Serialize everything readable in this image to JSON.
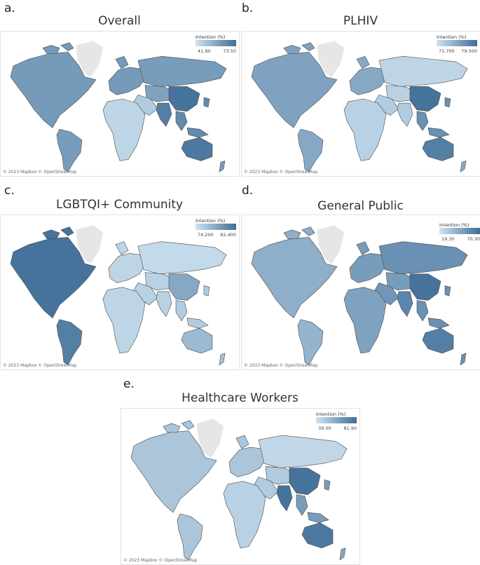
{
  "attribution": "© 2023 Mapbox © OpenStreetMap",
  "panels": [
    {
      "letter": "a.",
      "title": "Overall",
      "legend": {
        "title": "Intention (%)",
        "min": "41.90",
        "max": "73.50"
      },
      "shading": {
        "na": 0.62,
        "sa": 0.6,
        "eu": 0.62,
        "africa": 0.12,
        "me": 0.2,
        "russia": 0.6,
        "centralasia": 0.55,
        "china": 0.95,
        "india": 0.85,
        "sea": 0.75,
        "australia": 0.9,
        "nz": 0.6
      }
    },
    {
      "letter": "b.",
      "title": "PLHIV",
      "legend": {
        "title": "Intention (%)",
        "min": "71.700",
        "max": "79.500"
      },
      "shading": {
        "na": 0.55,
        "sa": 0.5,
        "eu": 0.5,
        "africa": 0.15,
        "me": 0.2,
        "russia": 0.12,
        "centralasia": 0.15,
        "china": 0.95,
        "india": 0.2,
        "sea": 0.7,
        "australia": 0.85,
        "nz": 0.5
      }
    },
    {
      "letter": "c.",
      "title": "LGBTQI+ Community",
      "legend": {
        "title": "Intention (%)",
        "min": "74.200",
        "max": "82.400"
      },
      "shading": {
        "na": 0.95,
        "sa": 0.85,
        "eu": 0.12,
        "africa": 0.12,
        "me": 0.15,
        "russia": 0.08,
        "centralasia": 0.15,
        "china": 0.5,
        "india": 0.15,
        "sea": 0.2,
        "australia": 0.35,
        "nz": 0.3
      }
    },
    {
      "letter": "d.",
      "title": "General Public",
      "legend": {
        "title": "Intention (%)",
        "min": "19.30",
        "max": "70.30"
      },
      "shading": {
        "na": 0.45,
        "sa": 0.4,
        "eu": 0.6,
        "africa": 0.55,
        "me": 0.65,
        "russia": 0.7,
        "centralasia": 0.6,
        "china": 0.95,
        "india": 0.8,
        "sea": 0.7,
        "australia": 0.85,
        "nz": 0.7
      }
    },
    {
      "letter": "e.",
      "title": "Healthcare Workers",
      "legend": {
        "title": "Intention (%)",
        "min": "39.00",
        "max": "81.90"
      },
      "shading": {
        "na": 0.25,
        "sa": 0.25,
        "eu": 0.25,
        "africa": 0.15,
        "me": 0.2,
        "russia": 0.1,
        "centralasia": 0.2,
        "china": 0.95,
        "india": 0.95,
        "sea": 0.6,
        "australia": 0.9,
        "nz": 0.5
      }
    }
  ],
  "colors": {
    "low": "#cfe3f1",
    "high": "#3e6d98",
    "greenland": "#e6e6e6",
    "border": "#4a4a4a"
  }
}
